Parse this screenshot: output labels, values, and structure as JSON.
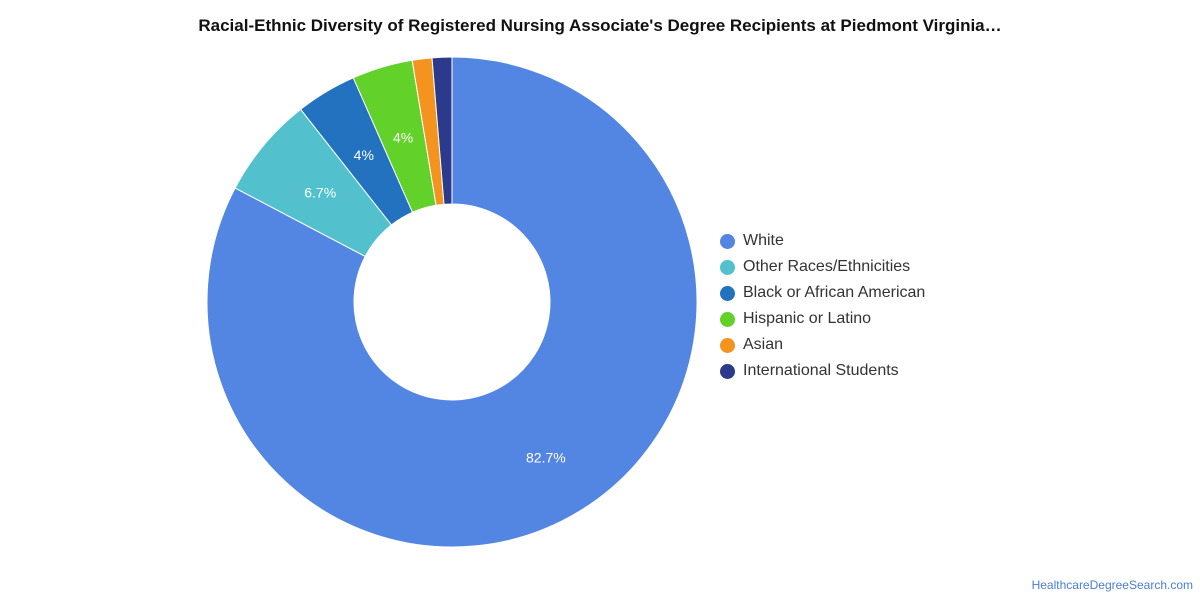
{
  "chart_data": {
    "type": "pie",
    "title": "Racial-Ethnic Diversity of Registered Nursing Associate's Degree Recipients at Piedmont Virginia…",
    "donut": true,
    "legend_position": "right",
    "categories": [
      "White",
      "Other Races/Ethnicities",
      "Black or African American",
      "Hispanic or Latino",
      "Asian",
      "International Students"
    ],
    "values": [
      82.7,
      6.7,
      4.0,
      4.0,
      1.3,
      1.3
    ],
    "data_labels": [
      "82.7%",
      "6.7%",
      "4%",
      "4%",
      "",
      ""
    ],
    "colors": [
      "#5385e2",
      "#52c1cd",
      "#2272c0",
      "#62d12a",
      "#f5931f",
      "#2c3a8c"
    ]
  },
  "source": "HealthcareDegreeSearch.com"
}
